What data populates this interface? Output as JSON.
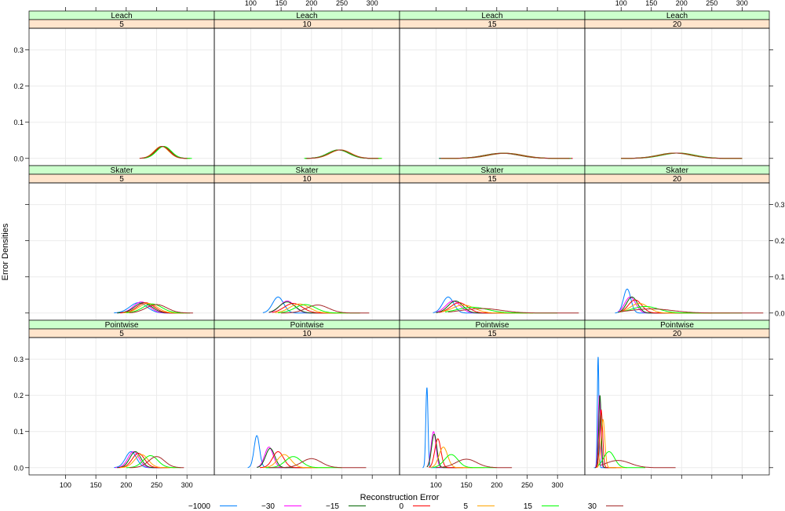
{
  "chart_data": {
    "type": "line",
    "ylabel": "Error Densities",
    "xlabel": "Reconstruction Error",
    "x_ticks": [
      100,
      150,
      200,
      250,
      300
    ],
    "y_ticks": [
      0.0,
      0.1,
      0.2,
      0.3
    ],
    "y_tick_labels": [
      "0.0",
      "0.1",
      "0.2",
      "0.3"
    ],
    "ylim": [
      -0.02,
      0.36
    ],
    "grid": true,
    "legend_position": "bottom",
    "rows": [
      "Leach",
      "Skater",
      "Pointwise"
    ],
    "cols": [
      "5",
      "10",
      "15",
      "20"
    ],
    "series": [
      {
        "name": "−1000",
        "color": "#0080ff"
      },
      {
        "name": "−30",
        "color": "#ff00ff"
      },
      {
        "name": "−15",
        "color": "#006400"
      },
      {
        "name": "0",
        "color": "#ff0000"
      },
      {
        "name": "5",
        "color": "#ffa500"
      },
      {
        "name": "15",
        "color": "#00ff00"
      },
      {
        "name": "30",
        "color": "#a52a2a"
      }
    ],
    "panels": [
      {
        "row": "Leach",
        "col": "5",
        "xlim": [
          40,
          345
        ],
        "curves": [
          {
            "mu": 260,
            "sd": 12,
            "range": [
              225,
              300
            ]
          },
          {
            "mu": 259,
            "sd": 12,
            "range": [
              224,
              298
            ]
          },
          {
            "mu": 261,
            "sd": 12,
            "range": [
              226,
              302
            ]
          },
          {
            "mu": 260,
            "sd": 12,
            "range": [
              225,
              305
            ]
          },
          {
            "mu": 258,
            "sd": 12,
            "range": [
              222,
              300
            ]
          },
          {
            "mu": 262,
            "sd": 12,
            "range": [
              228,
              308
            ]
          },
          {
            "mu": 259,
            "sd": 12,
            "range": [
              222,
              300
            ]
          }
        ]
      },
      {
        "row": "Leach",
        "col": "10",
        "xlim": [
          40,
          345
        ],
        "curves": [
          {
            "mu": 245,
            "sd": 17,
            "range": [
              190,
              310
            ]
          },
          {
            "mu": 246,
            "sd": 17,
            "range": [
              192,
              312
            ]
          },
          {
            "mu": 244,
            "sd": 17,
            "range": [
              190,
              308
            ]
          },
          {
            "mu": 245,
            "sd": 17,
            "range": [
              190,
              312
            ]
          },
          {
            "mu": 248,
            "sd": 17,
            "range": [
              195,
              315
            ]
          },
          {
            "mu": 245,
            "sd": 17,
            "range": [
              188,
              316
            ]
          },
          {
            "mu": 247,
            "sd": 17,
            "range": [
              192,
              310
            ]
          }
        ]
      },
      {
        "row": "Leach",
        "col": "15",
        "xlim": [
          40,
          345
        ],
        "curves": [
          {
            "mu": 210,
            "sd": 28,
            "range": [
              105,
              325
            ]
          },
          {
            "mu": 212,
            "sd": 28,
            "range": [
              110,
              320
            ]
          },
          {
            "mu": 208,
            "sd": 28,
            "range": [
              105,
              320
            ]
          },
          {
            "mu": 215,
            "sd": 28,
            "range": [
              110,
              325
            ]
          },
          {
            "mu": 210,
            "sd": 28,
            "range": [
              108,
              318
            ]
          },
          {
            "mu": 213,
            "sd": 28,
            "range": [
              110,
              322
            ]
          },
          {
            "mu": 211,
            "sd": 28,
            "range": [
              108,
              320
            ]
          }
        ]
      },
      {
        "row": "Leach",
        "col": "20",
        "xlim": [
          40,
          345
        ],
        "curves": [
          {
            "mu": 190,
            "sd": 27,
            "range": [
              100,
              300
            ]
          },
          {
            "mu": 192,
            "sd": 27,
            "range": [
              100,
              300
            ]
          },
          {
            "mu": 188,
            "sd": 27,
            "range": [
              100,
              300
            ]
          },
          {
            "mu": 193,
            "sd": 27,
            "range": [
              100,
              300
            ]
          },
          {
            "mu": 190,
            "sd": 27,
            "range": [
              100,
              300
            ]
          },
          {
            "mu": 195,
            "sd": 27,
            "range": [
              100,
              300
            ]
          },
          {
            "mu": 192,
            "sd": 27,
            "range": [
              100,
              300
            ]
          }
        ]
      },
      {
        "row": "Skater",
        "col": "5",
        "xlim": [
          40,
          345
        ],
        "curves": [
          {
            "mu": 220,
            "sd": 14,
            "range": [
              180,
              280
            ]
          },
          {
            "mu": 225,
            "sd": 13,
            "range": [
              185,
              285
            ]
          },
          {
            "mu": 228,
            "sd": 14,
            "range": [
              185,
              290
            ]
          },
          {
            "mu": 232,
            "sd": 14,
            "range": [
              190,
              295
            ]
          },
          {
            "mu": 236,
            "sd": 15,
            "range": [
              195,
              300
            ]
          },
          {
            "mu": 243,
            "sd": 16,
            "range": [
              200,
              305
            ]
          },
          {
            "mu": 250,
            "sd": 17,
            "range": [
              205,
              310
            ]
          }
        ]
      },
      {
        "row": "Skater",
        "col": "10",
        "xlim": [
          40,
          345
        ],
        "curves": [
          {
            "mu": 145,
            "sd": 9,
            "range": [
              120,
              200
            ]
          },
          {
            "mu": 160,
            "sd": 12,
            "range": [
              130,
              230
            ]
          },
          {
            "mu": 160,
            "sd": 13,
            "range": [
              130,
              240
            ]
          },
          {
            "mu": 170,
            "sd": 15,
            "range": [
              135,
              250
            ]
          },
          {
            "mu": 180,
            "sd": 16,
            "range": [
              140,
              260
            ]
          },
          {
            "mu": 190,
            "sd": 17,
            "range": [
              145,
              280
            ]
          },
          {
            "mu": 210,
            "sd": 18,
            "range": [
              150,
              295
            ]
          }
        ]
      },
      {
        "row": "Skater",
        "col": "15",
        "xlim": [
          40,
          345
        ],
        "curves": [
          {
            "mu": 120,
            "sd": 9,
            "range": [
              95,
              200
            ]
          },
          {
            "mu": 128,
            "sd": 12,
            "range": [
              100,
              220
            ]
          },
          {
            "mu": 132,
            "sd": 12,
            "range": [
              100,
              230
            ]
          },
          {
            "mu": 138,
            "sd": 14,
            "range": [
              105,
              250
            ]
          },
          {
            "mu": 145,
            "sd": 18,
            "range": [
              110,
              260
            ]
          },
          {
            "mu": 160,
            "sd": 25,
            "range": [
              115,
              300
            ]
          },
          {
            "mu": 175,
            "sd": 32,
            "range": [
              120,
              335
            ]
          }
        ]
      },
      {
        "row": "Skater",
        "col": "20",
        "xlim": [
          40,
          345
        ],
        "curves": [
          {
            "mu": 110,
            "sd": 6,
            "range": [
              90,
              200
            ]
          },
          {
            "mu": 115,
            "sd": 9,
            "range": [
              95,
              220
            ]
          },
          {
            "mu": 118,
            "sd": 9,
            "range": [
              95,
              230
            ]
          },
          {
            "mu": 123,
            "sd": 11,
            "range": [
              98,
              250
            ]
          },
          {
            "mu": 130,
            "sd": 15,
            "range": [
              100,
              280
            ]
          },
          {
            "mu": 140,
            "sd": 22,
            "range": [
              100,
              300
            ]
          },
          {
            "mu": 150,
            "sd": 35,
            "range": [
              100,
              335
            ]
          }
        ]
      },
      {
        "row": "Pointwise",
        "col": "5",
        "xlim": [
          40,
          345
        ],
        "curves": [
          {
            "mu": 208,
            "sd": 9,
            "range": [
              180,
              260
            ]
          },
          {
            "mu": 212,
            "sd": 9,
            "range": [
              182,
              265
            ]
          },
          {
            "mu": 215,
            "sd": 9,
            "range": [
              185,
              268
            ]
          },
          {
            "mu": 220,
            "sd": 10,
            "range": [
              188,
              272
            ]
          },
          {
            "mu": 225,
            "sd": 11,
            "range": [
              190,
              280
            ]
          },
          {
            "mu": 240,
            "sd": 12,
            "range": [
              200,
              290
            ]
          },
          {
            "mu": 250,
            "sd": 13,
            "range": [
              205,
              295
            ]
          }
        ]
      },
      {
        "row": "Pointwise",
        "col": "10",
        "xlim": [
          40,
          345
        ],
        "curves": [
          {
            "mu": 110,
            "sd": 4.5,
            "range": [
              95,
              160
            ]
          },
          {
            "mu": 130,
            "sd": 7,
            "range": [
              110,
              190
            ]
          },
          {
            "mu": 132,
            "sd": 7.5,
            "range": [
              110,
              200
            ]
          },
          {
            "mu": 145,
            "sd": 9,
            "range": [
              115,
              210
            ]
          },
          {
            "mu": 155,
            "sd": 11,
            "range": [
              120,
              230
            ]
          },
          {
            "mu": 170,
            "sd": 13,
            "range": [
              125,
              250
            ]
          },
          {
            "mu": 200,
            "sd": 16,
            "range": [
              130,
              290
            ]
          }
        ]
      },
      {
        "row": "Pointwise",
        "col": "15",
        "xlim": [
          40,
          345
        ],
        "curves": [
          {
            "mu": 85,
            "sd": 1.8,
            "range": [
              78,
              110
            ]
          },
          {
            "mu": 96,
            "sd": 4,
            "range": [
              85,
              140
            ]
          },
          {
            "mu": 97,
            "sd": 4.3,
            "range": [
              85,
              145
            ]
          },
          {
            "mu": 103,
            "sd": 5,
            "range": [
              88,
              160
            ]
          },
          {
            "mu": 112,
            "sd": 7,
            "range": [
              90,
              180
            ]
          },
          {
            "mu": 125,
            "sd": 11,
            "range": [
              95,
              200
            ]
          },
          {
            "mu": 150,
            "sd": 17,
            "range": [
              100,
              225
            ]
          }
        ]
      },
      {
        "row": "Pointwise",
        "col": "20",
        "xlim": [
          40,
          345
        ],
        "curves": [
          {
            "mu": 62,
            "sd": 1.3,
            "range": [
              55,
              80
            ]
          },
          {
            "mu": 64,
            "sd": 2,
            "range": [
              57,
              90
            ]
          },
          {
            "mu": 65,
            "sd": 2,
            "range": [
              57,
              92
            ]
          },
          {
            "mu": 67,
            "sd": 2.5,
            "range": [
              58,
              100
            ]
          },
          {
            "mu": 70,
            "sd": 3,
            "range": [
              60,
              110
            ]
          },
          {
            "mu": 80,
            "sd": 9,
            "range": [
              62,
              140
            ]
          },
          {
            "mu": 95,
            "sd": 20,
            "range": [
              65,
              190
            ]
          }
        ]
      }
    ]
  }
}
